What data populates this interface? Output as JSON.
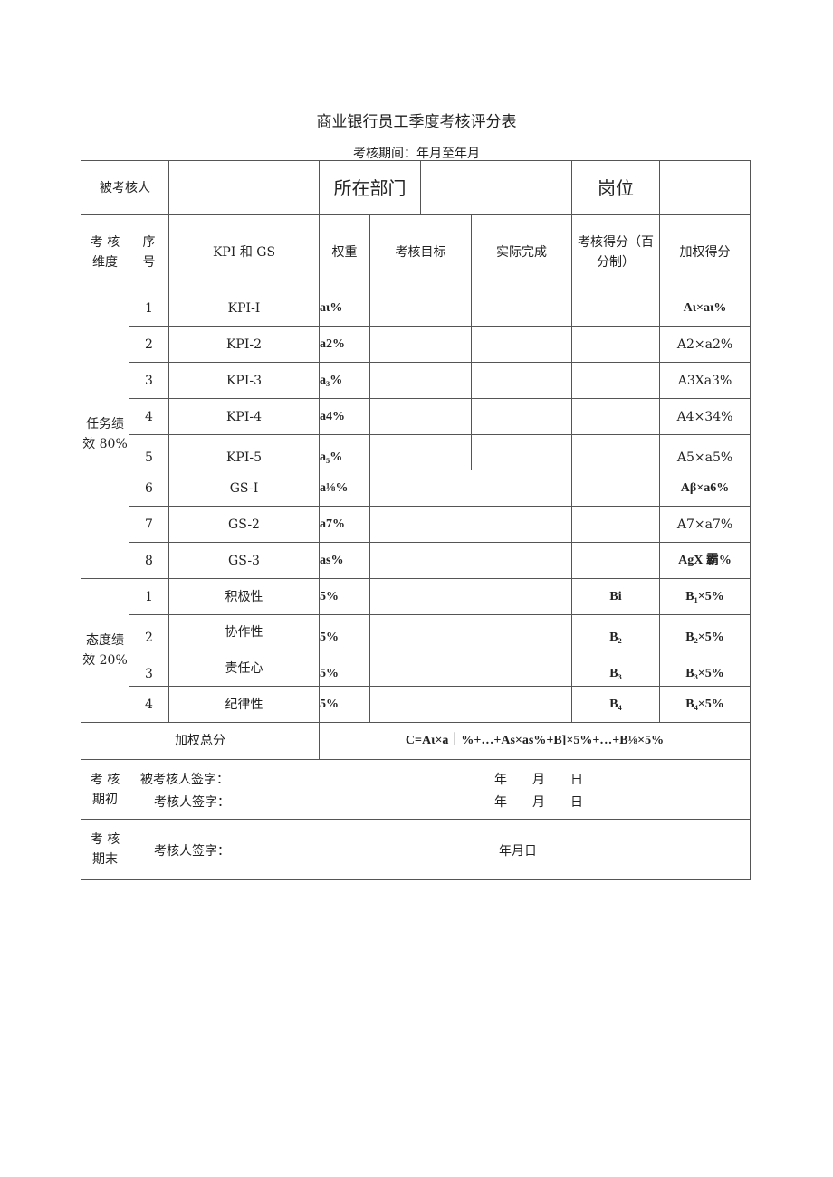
{
  "title": "商业银行员工季度考核评分表",
  "period": "考核期间：年月至年月",
  "header": {
    "appraisee": "被考核人",
    "department": "所在部门",
    "position": "岗位"
  },
  "columns": {
    "dimension": "考核维度",
    "dim_a": "考 核",
    "dim_b": "维度",
    "seq_a": "序",
    "seq_b": "号",
    "kpi": "KPI 和 GS",
    "weight": "权重",
    "target": "考核目标",
    "actual": "实际完成",
    "score_a": "考核得分（百",
    "score_b": "分制）",
    "weighted": "加权得分"
  },
  "task_group": {
    "label_a": "任务绩",
    "label_b": "效 80%"
  },
  "task_rows": [
    {
      "seq": "1",
      "item": "KPI-I",
      "weight": "aι%",
      "weighted": "Aι×aι%"
    },
    {
      "seq": "2",
      "item": "KPI-2",
      "weight": "a2%",
      "weighted": "A2×a2%"
    },
    {
      "seq": "3",
      "item": "KPI-3",
      "weight": "a₃%",
      "weighted": "A3Xa3%"
    },
    {
      "seq": "4",
      "item": "KPI-4",
      "weight": "a4%",
      "weighted": "A4×34%"
    },
    {
      "seq": "5",
      "item": "KPI-5",
      "weight": "a₅%",
      "weighted": "A5×a5%"
    },
    {
      "seq": "6",
      "item": "GS-I",
      "weight": "a⅛%",
      "weighted": "Aβ×a6%"
    },
    {
      "seq": "7",
      "item": "GS-2",
      "weight": "a7%",
      "weighted": "A7×a7%"
    },
    {
      "seq": "8",
      "item": "GS-3",
      "weight": "as%",
      "weighted": "AgX 霸%"
    }
  ],
  "attitude_group": {
    "label_a": "态度绩",
    "label_b": "效 20%"
  },
  "attitude_rows": [
    {
      "seq": "1",
      "item": "积极性",
      "weight": "5%",
      "score": "Bi",
      "weighted": "B₁×5%"
    },
    {
      "seq": "2",
      "item": "协作性",
      "weight": "5%",
      "score": "B₂",
      "weighted": "B₂×5%"
    },
    {
      "seq": "3",
      "item": "责任心",
      "weight": "5%",
      "score": "B₃",
      "weighted": "B₃×5%"
    },
    {
      "seq": "4",
      "item": "纪律性",
      "weight": "5%",
      "score": "B₄",
      "weighted": "B₄×5%"
    }
  ],
  "total": {
    "label": "加权总分",
    "formula": "C=Aι×a｜%+…+As×as%+B]×5%+…+B⅛×5%"
  },
  "initial": {
    "label_a": "考 核",
    "label_b": "期初",
    "line1": "被考核人签字：",
    "line2": "考核人签字：",
    "date1": "年　　月　　日",
    "date2": "年　　月　　日"
  },
  "final": {
    "label_a": "考 核",
    "label_b": "期末",
    "line": "考核人签字：",
    "date": "年月日"
  }
}
